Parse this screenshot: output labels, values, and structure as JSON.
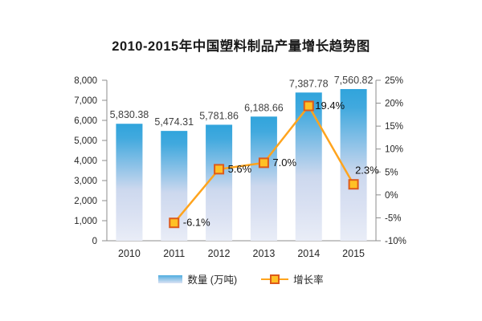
{
  "title": "2010-2015年中国塑料制品产量增长趋势图",
  "chart_data": {
    "type": "combo",
    "title": "2010-2015年中国塑料制品产量增长趋势图",
    "categories": [
      "2010",
      "2011",
      "2012",
      "2013",
      "2014",
      "2015"
    ],
    "grid": false,
    "legend_position": "bottom",
    "series": [
      {
        "name": "数量 (万吨)",
        "type": "bar",
        "axis": "left",
        "values": [
          5830.38,
          5474.31,
          5781.86,
          6188.66,
          7387.78,
          7560.82
        ],
        "labels": [
          "5,830.38",
          "5,474.31",
          "5,781.86",
          "6,188.66",
          "7,387.78",
          "7,560.82"
        ]
      },
      {
        "name": "增长率",
        "type": "line",
        "axis": "right",
        "values": [
          null,
          -6.1,
          5.6,
          7.0,
          19.4,
          2.3
        ],
        "labels": [
          "",
          "-6.1%",
          "5.6%",
          "7.0%",
          "19.4%",
          "2.3%"
        ],
        "label_offsets": [
          [
            0,
            0
          ],
          [
            11,
            4
          ],
          [
            11,
            4
          ],
          [
            11,
            4
          ],
          [
            8,
            4
          ],
          [
            2,
            -13
          ]
        ]
      }
    ],
    "left_axis": {
      "min": 0,
      "max": 8000,
      "step": 1000,
      "tick_labels": [
        "0",
        "1,000",
        "2,000",
        "3,000",
        "4,000",
        "5,000",
        "6,000",
        "7,000",
        "8,000"
      ]
    },
    "right_axis": {
      "min": -10,
      "max": 25,
      "step": 5,
      "tick_labels": [
        "-10%",
        "-5%",
        "0%",
        "5%",
        "10%",
        "15%",
        "20%",
        "25%"
      ]
    },
    "colors": {
      "bar_top": "#2fa5dd",
      "bar_mid": "#a9cdea",
      "bar_low": "#d7dff0",
      "bar_bottom": "#e9edf7",
      "line": "#ffa41e",
      "marker_fill": "#ffc125",
      "marker_stroke": "#dd5a1b",
      "axis": "#8c8c8c",
      "tick_text": "#262626",
      "value_text": "#3f3f3f",
      "title": "#1a1a1a"
    }
  },
  "legend": {
    "items": [
      {
        "label": "数量 (万吨)",
        "type": "bar"
      },
      {
        "label": "增长率",
        "type": "line"
      }
    ]
  }
}
